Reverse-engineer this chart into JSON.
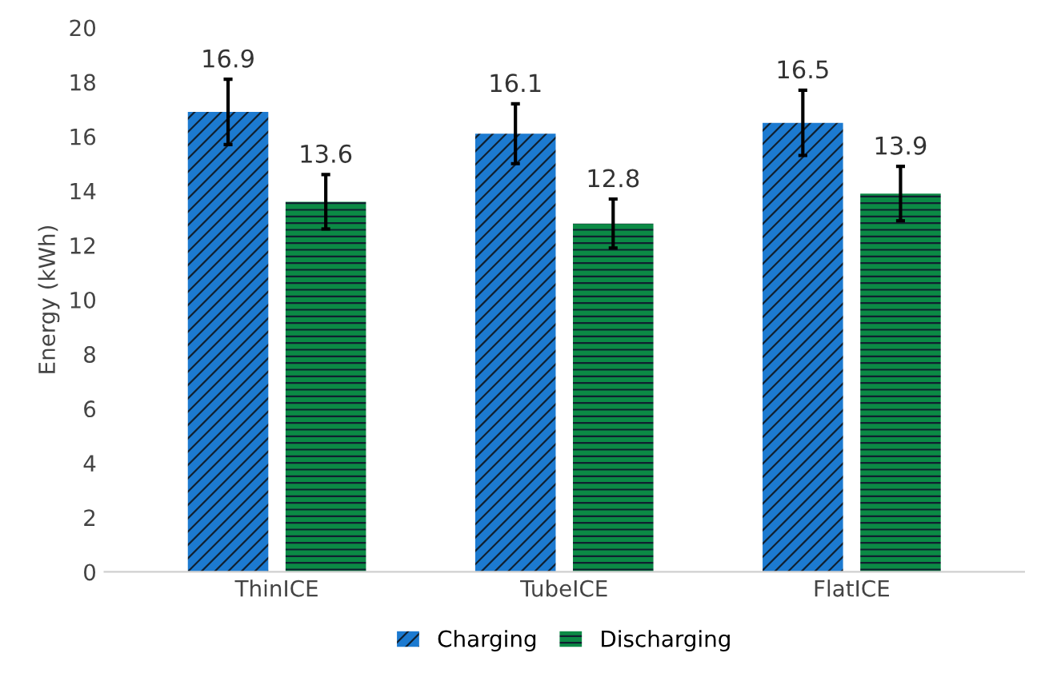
{
  "chart_data": {
    "type": "bar",
    "ylabel": "Energy (kWh)",
    "categories": [
      "ThinICE",
      "TubeICE",
      "FlatICE"
    ],
    "series": [
      {
        "name": "Charging",
        "color": "#1c7ad0",
        "values": [
          16.9,
          16.1,
          16.5
        ],
        "errors": [
          1.2,
          1.1,
          1.2
        ]
      },
      {
        "name": "Discharging",
        "color": "#0b8a45",
        "values": [
          13.6,
          12.8,
          13.9
        ],
        "errors": [
          1.0,
          0.9,
          1.0
        ]
      }
    ],
    "ylim": [
      0,
      20
    ],
    "yticks": [
      0,
      2,
      4,
      6,
      8,
      10,
      12,
      14,
      16,
      18,
      20
    ],
    "grid": false,
    "legend": "bottom",
    "data_labels": true
  }
}
